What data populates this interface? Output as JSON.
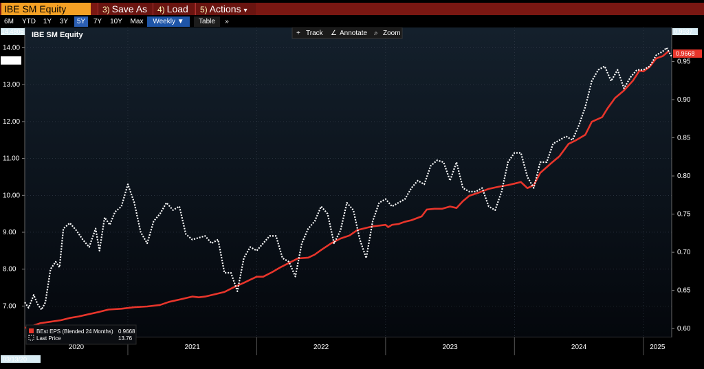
{
  "toolbar": {
    "ticker": "IBE SM Equity",
    "save_as": {
      "num": "3)",
      "label": "Save As"
    },
    "load": {
      "num": "4)",
      "label": "Load"
    },
    "actions": {
      "num": "5)",
      "label": "Actions",
      "caret": "▾"
    }
  },
  "periods": [
    "6M",
    "YTD",
    "1Y",
    "3Y",
    "5Y",
    "7Y",
    "10Y",
    "Max"
  ],
  "active_period": "5Y",
  "frequency": "Weekly ▼",
  "table_label": "Table",
  "more_label": "»",
  "tools": {
    "track": "Track",
    "annotate": "Annotate",
    "zoom": "Zoom"
  },
  "colors": {
    "eps": "#e8352b",
    "price": "#ffffff",
    "toolbar": "#7a1712",
    "ticker_bg": "#f4a024",
    "active_tab": "#2b5fb4"
  },
  "chart_data": {
    "type": "line",
    "title": "IBE SM Equity",
    "start_date": "03/13/20",
    "x_categories": [
      "2020",
      "2021",
      "2022",
      "2023",
      "2024",
      "2025"
    ],
    "left_axis": {
      "ticks": [
        "7.00",
        "8.00",
        "9.00",
        "10.00",
        "11.00",
        "12.00",
        "13.00",
        "14.00"
      ],
      "min": 6.15,
      "max": 14.55,
      "top_label": "14.4806",
      "last_label": "13.76"
    },
    "right_axis": {
      "ticks": [
        "0.60",
        "0.65",
        "0.70",
        "0.75",
        "0.80",
        "0.85",
        "0.90",
        "0.95"
      ],
      "min": 0.5885,
      "max": 0.9945,
      "top_label": "0.9937",
      "last_label": "0.9668"
    },
    "x_range": [
      2020.2,
      2025.22
    ],
    "series": [
      {
        "name": "BEst EPS (Blended 24 Months)",
        "last": "0.9668",
        "axis": "right",
        "style": "solid",
        "points": [
          [
            2020.2,
            0.601
          ],
          [
            2020.25,
            0.603
          ],
          [
            2020.32,
            0.607
          ],
          [
            2020.4,
            0.609
          ],
          [
            2020.48,
            0.611
          ],
          [
            2020.55,
            0.614
          ],
          [
            2020.62,
            0.616
          ],
          [
            2020.7,
            0.619
          ],
          [
            2020.78,
            0.622
          ],
          [
            2020.85,
            0.625
          ],
          [
            2020.95,
            0.626
          ],
          [
            2021.05,
            0.628
          ],
          [
            2021.15,
            0.629
          ],
          [
            2021.25,
            0.631
          ],
          [
            2021.32,
            0.635
          ],
          [
            2021.4,
            0.638
          ],
          [
            2021.5,
            0.642
          ],
          [
            2021.55,
            0.641
          ],
          [
            2021.6,
            0.642
          ],
          [
            2021.7,
            0.646
          ],
          [
            2021.75,
            0.648
          ],
          [
            2021.82,
            0.654
          ],
          [
            2021.9,
            0.66
          ],
          [
            2021.95,
            0.664
          ],
          [
            2022.0,
            0.668
          ],
          [
            2022.05,
            0.668
          ],
          [
            2022.12,
            0.674
          ],
          [
            2022.18,
            0.68
          ],
          [
            2022.25,
            0.686
          ],
          [
            2022.32,
            0.692
          ],
          [
            2022.4,
            0.693
          ],
          [
            2022.45,
            0.697
          ],
          [
            2022.5,
            0.703
          ],
          [
            2022.58,
            0.712
          ],
          [
            2022.65,
            0.718
          ],
          [
            2022.72,
            0.722
          ],
          [
            2022.78,
            0.729
          ],
          [
            2022.85,
            0.732
          ],
          [
            2022.9,
            0.734
          ],
          [
            2022.95,
            0.735
          ],
          [
            2023.0,
            0.736
          ],
          [
            2023.02,
            0.733
          ],
          [
            2023.05,
            0.736
          ],
          [
            2023.1,
            0.737
          ],
          [
            2023.15,
            0.74
          ],
          [
            2023.2,
            0.742
          ],
          [
            2023.28,
            0.747
          ],
          [
            2023.32,
            0.756
          ],
          [
            2023.38,
            0.757
          ],
          [
            2023.44,
            0.757
          ],
          [
            2023.5,
            0.76
          ],
          [
            2023.55,
            0.758
          ],
          [
            2023.6,
            0.767
          ],
          [
            2023.65,
            0.774
          ],
          [
            2023.72,
            0.778
          ],
          [
            2023.8,
            0.783
          ],
          [
            2023.88,
            0.786
          ],
          [
            2023.95,
            0.788
          ],
          [
            2024.0,
            0.79
          ],
          [
            2024.05,
            0.792
          ],
          [
            2024.1,
            0.784
          ],
          [
            2024.15,
            0.788
          ],
          [
            2024.2,
            0.804
          ],
          [
            2024.28,
            0.816
          ],
          [
            2024.35,
            0.826
          ],
          [
            2024.42,
            0.842
          ],
          [
            2024.48,
            0.847
          ],
          [
            2024.55,
            0.854
          ],
          [
            2024.6,
            0.871
          ],
          [
            2024.68,
            0.877
          ],
          [
            2024.72,
            0.888
          ],
          [
            2024.78,
            0.902
          ],
          [
            2024.85,
            0.912
          ],
          [
            2024.92,
            0.925
          ],
          [
            2024.97,
            0.938
          ],
          [
            2025.0,
            0.937
          ],
          [
            2025.05,
            0.943
          ],
          [
            2025.1,
            0.954
          ],
          [
            2025.15,
            0.957
          ],
          [
            2025.2,
            0.964
          ]
        ]
      },
      {
        "name": "Last Price",
        "last": "13.76",
        "axis": "left",
        "style": "dotted",
        "points": [
          [
            2020.2,
            7.1
          ],
          [
            2020.23,
            6.95
          ],
          [
            2020.27,
            7.3
          ],
          [
            2020.3,
            7.05
          ],
          [
            2020.33,
            6.9
          ],
          [
            2020.36,
            7.1
          ],
          [
            2020.4,
            8.0
          ],
          [
            2020.44,
            8.2
          ],
          [
            2020.47,
            8.05
          ],
          [
            2020.5,
            9.1
          ],
          [
            2020.55,
            9.25
          ],
          [
            2020.6,
            9.05
          ],
          [
            2020.65,
            8.8
          ],
          [
            2020.7,
            8.6
          ],
          [
            2020.75,
            9.1
          ],
          [
            2020.78,
            8.5
          ],
          [
            2020.82,
            9.4
          ],
          [
            2020.86,
            9.2
          ],
          [
            2020.9,
            9.55
          ],
          [
            2020.95,
            9.7
          ],
          [
            2021.0,
            10.3
          ],
          [
            2021.05,
            9.8
          ],
          [
            2021.1,
            9.0
          ],
          [
            2021.15,
            8.7
          ],
          [
            2021.2,
            9.3
          ],
          [
            2021.25,
            9.5
          ],
          [
            2021.3,
            9.8
          ],
          [
            2021.35,
            9.6
          ],
          [
            2021.4,
            9.7
          ],
          [
            2021.45,
            8.95
          ],
          [
            2021.5,
            8.8
          ],
          [
            2021.55,
            8.85
          ],
          [
            2021.6,
            8.9
          ],
          [
            2021.65,
            8.7
          ],
          [
            2021.7,
            8.8
          ],
          [
            2021.75,
            7.9
          ],
          [
            2021.8,
            7.9
          ],
          [
            2021.85,
            7.4
          ],
          [
            2021.9,
            8.3
          ],
          [
            2021.95,
            8.6
          ],
          [
            2022.0,
            8.5
          ],
          [
            2022.05,
            8.7
          ],
          [
            2022.1,
            8.9
          ],
          [
            2022.15,
            8.9
          ],
          [
            2022.2,
            8.3
          ],
          [
            2022.25,
            8.2
          ],
          [
            2022.3,
            7.8
          ],
          [
            2022.35,
            8.7
          ],
          [
            2022.4,
            9.1
          ],
          [
            2022.45,
            9.3
          ],
          [
            2022.5,
            9.7
          ],
          [
            2022.55,
            9.5
          ],
          [
            2022.6,
            8.7
          ],
          [
            2022.65,
            9.05
          ],
          [
            2022.7,
            9.8
          ],
          [
            2022.75,
            9.6
          ],
          [
            2022.8,
            8.8
          ],
          [
            2022.85,
            8.3
          ],
          [
            2022.9,
            9.3
          ],
          [
            2022.95,
            9.8
          ],
          [
            2023.0,
            9.9
          ],
          [
            2023.05,
            9.7
          ],
          [
            2023.1,
            9.8
          ],
          [
            2023.15,
            9.9
          ],
          [
            2023.2,
            10.2
          ],
          [
            2023.25,
            10.4
          ],
          [
            2023.3,
            10.3
          ],
          [
            2023.35,
            10.8
          ],
          [
            2023.4,
            10.95
          ],
          [
            2023.45,
            10.9
          ],
          [
            2023.5,
            10.4
          ],
          [
            2023.55,
            10.9
          ],
          [
            2023.6,
            10.2
          ],
          [
            2023.65,
            10.1
          ],
          [
            2023.7,
            10.1
          ],
          [
            2023.75,
            10.2
          ],
          [
            2023.8,
            9.7
          ],
          [
            2023.85,
            9.6
          ],
          [
            2023.9,
            10.1
          ],
          [
            2023.95,
            10.9
          ],
          [
            2024.0,
            11.15
          ],
          [
            2024.05,
            11.15
          ],
          [
            2024.1,
            10.5
          ],
          [
            2024.15,
            10.2
          ],
          [
            2024.2,
            10.9
          ],
          [
            2024.25,
            10.9
          ],
          [
            2024.3,
            11.4
          ],
          [
            2024.35,
            11.5
          ],
          [
            2024.4,
            11.6
          ],
          [
            2024.45,
            11.5
          ],
          [
            2024.5,
            11.9
          ],
          [
            2024.55,
            12.4
          ],
          [
            2024.6,
            13.1
          ],
          [
            2024.65,
            13.4
          ],
          [
            2024.7,
            13.5
          ],
          [
            2024.75,
            13.1
          ],
          [
            2024.8,
            13.4
          ],
          [
            2024.85,
            12.9
          ],
          [
            2024.9,
            13.2
          ],
          [
            2024.95,
            13.4
          ],
          [
            2025.0,
            13.4
          ],
          [
            2025.05,
            13.5
          ],
          [
            2025.1,
            13.8
          ],
          [
            2025.15,
            13.9
          ],
          [
            2025.18,
            14.0
          ],
          [
            2025.22,
            13.76
          ]
        ]
      }
    ]
  }
}
